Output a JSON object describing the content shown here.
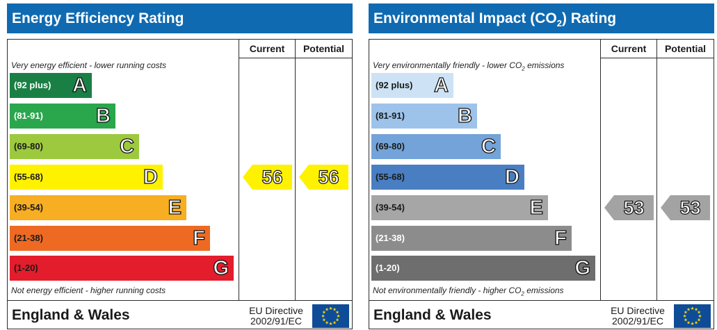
{
  "chart_data": [
    {
      "type": "bar",
      "title": "Energy Efficiency Rating",
      "top_note": "Very energy efficient - lower running costs",
      "bottom_note": "Not energy efficient - higher running costs",
      "columns": [
        "Current",
        "Potential"
      ],
      "bands": [
        {
          "range": "(92 plus)",
          "letter": "A",
          "color": "#1a7f45",
          "text_color": "#ffffff"
        },
        {
          "range": "(81-91)",
          "letter": "B",
          "color": "#2aa64d",
          "text_color": "#ffffff"
        },
        {
          "range": "(69-80)",
          "letter": "C",
          "color": "#9dc93e",
          "text_color": "#1a1a1a"
        },
        {
          "range": "(55-68)",
          "letter": "D",
          "color": "#fff200",
          "text_color": "#1a1a1a"
        },
        {
          "range": "(39-54)",
          "letter": "E",
          "color": "#f7ae22",
          "text_color": "#1a1a1a"
        },
        {
          "range": "(21-38)",
          "letter": "F",
          "color": "#ee6a23",
          "text_color": "#1a1a1a"
        },
        {
          "range": "(1-20)",
          "letter": "G",
          "color": "#e31d2c",
          "text_color": "#1a1a1a"
        }
      ],
      "current": {
        "value": "56",
        "band": "D",
        "color": "#fff200"
      },
      "potential": {
        "value": "56",
        "band": "D",
        "color": "#fff200"
      },
      "footer_region": "England & Wales",
      "footer_directive_line1": "EU Directive",
      "footer_directive_line2": "2002/91/EC"
    },
    {
      "type": "bar",
      "title_main": "Environmental Impact (CO",
      "title_sub": "2",
      "title_end": ") Rating",
      "top_note_main": "Very environmentally friendly - lower CO",
      "top_note_sub": "2",
      "top_note_end": " emissions",
      "bottom_note_main": "Not environmentally friendly - higher CO",
      "bottom_note_sub": "2",
      "bottom_note_end": " emissions",
      "columns": [
        "Current",
        "Potential"
      ],
      "bands": [
        {
          "range": "(92 plus)",
          "letter": "A",
          "color": "#cde3f5",
          "text_color": "#1a1a1a"
        },
        {
          "range": "(81-91)",
          "letter": "B",
          "color": "#9dc3ea",
          "text_color": "#1a1a1a"
        },
        {
          "range": "(69-80)",
          "letter": "C",
          "color": "#73a3d8",
          "text_color": "#1a1a1a"
        },
        {
          "range": "(55-68)",
          "letter": "D",
          "color": "#4a7ec2",
          "text_color": "#1a1a1a"
        },
        {
          "range": "(39-54)",
          "letter": "E",
          "color": "#a6a6a6",
          "text_color": "#1a1a1a"
        },
        {
          "range": "(21-38)",
          "letter": "F",
          "color": "#8c8c8c",
          "text_color": "#ffffff"
        },
        {
          "range": "(1-20)",
          "letter": "G",
          "color": "#6e6e6e",
          "text_color": "#ffffff"
        }
      ],
      "current": {
        "value": "53",
        "band": "E",
        "color": "#a3a3a3"
      },
      "potential": {
        "value": "53",
        "band": "E",
        "color": "#a3a3a3"
      },
      "footer_region": "England & Wales",
      "footer_directive_line1": "EU Directive",
      "footer_directive_line2": "2002/91/EC"
    }
  ],
  "colors": {
    "title_bar": "#0f6ab1",
    "eu_flag": "#0f4c97",
    "eu_star": "#ffdd00"
  }
}
